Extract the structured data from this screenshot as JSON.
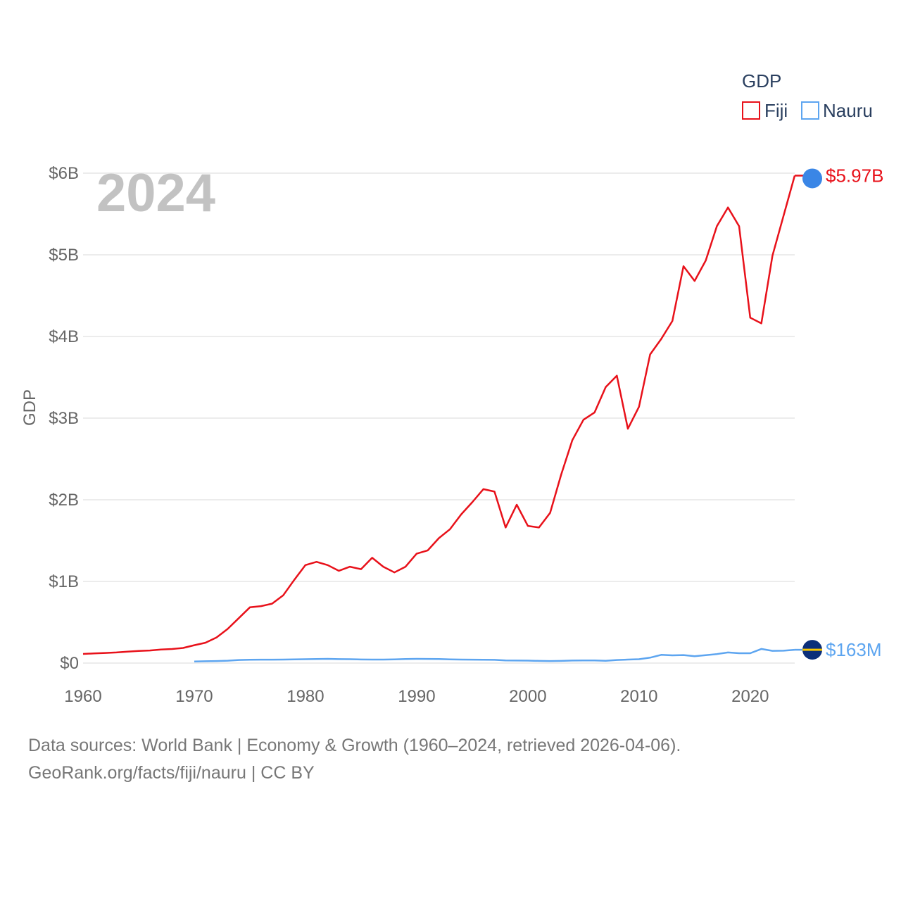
{
  "chart_data": {
    "type": "line",
    "year_label": "2024",
    "ylabel": "GDP",
    "legend_title": "GDP",
    "xlim": [
      1960,
      2024
    ],
    "ylim": [
      0,
      6000000000
    ],
    "x_ticks": [
      1960,
      1970,
      1980,
      1990,
      2000,
      2010,
      2020
    ],
    "y_ticks": [
      {
        "value": 0,
        "label": "$0"
      },
      {
        "value": 1000000000,
        "label": "$1B"
      },
      {
        "value": 2000000000,
        "label": "$2B"
      },
      {
        "value": 3000000000,
        "label": "$3B"
      },
      {
        "value": 4000000000,
        "label": "$4B"
      },
      {
        "value": 5000000000,
        "label": "$5B"
      },
      {
        "value": 6000000000,
        "label": "$6B"
      }
    ],
    "series": [
      {
        "name": "Fiji",
        "color": "#e8111a",
        "end_label": "$5.97B",
        "x": [
          1960,
          1961,
          1962,
          1963,
          1964,
          1965,
          1966,
          1967,
          1968,
          1969,
          1970,
          1971,
          1972,
          1973,
          1974,
          1975,
          1976,
          1977,
          1978,
          1979,
          1980,
          1981,
          1982,
          1983,
          1984,
          1985,
          1986,
          1987,
          1988,
          1989,
          1990,
          1991,
          1992,
          1993,
          1994,
          1995,
          1996,
          1997,
          1998,
          1999,
          2000,
          2001,
          2002,
          2003,
          2004,
          2005,
          2006,
          2007,
          2008,
          2009,
          2010,
          2011,
          2012,
          2013,
          2014,
          2015,
          2016,
          2017,
          2018,
          2019,
          2020,
          2021,
          2022,
          2023,
          2024
        ],
        "values": [
          112000000,
          118000000,
          124000000,
          130000000,
          140000000,
          148000000,
          154000000,
          166000000,
          172000000,
          185000000,
          219000000,
          249000000,
          314000000,
          418000000,
          550000000,
          683000000,
          697000000,
          728000000,
          829000000,
          1020000000,
          1200000000,
          1240000000,
          1200000000,
          1130000000,
          1180000000,
          1150000000,
          1290000000,
          1180000000,
          1110000000,
          1180000000,
          1340000000,
          1380000000,
          1530000000,
          1640000000,
          1820000000,
          1970000000,
          2130000000,
          2100000000,
          1660000000,
          1940000000,
          1680000000,
          1660000000,
          1840000000,
          2310000000,
          2730000000,
          2980000000,
          3070000000,
          3380000000,
          3520000000,
          2870000000,
          3140000000,
          3780000000,
          3970000000,
          4190000000,
          4860000000,
          4680000000,
          4930000000,
          5350000000,
          5580000000,
          5350000000,
          4230000000,
          4160000000,
          4990000000,
          5480000000,
          5970000000
        ]
      },
      {
        "name": "Nauru",
        "color": "#5da5f0",
        "end_label": "$163M",
        "x": [
          1970,
          1971,
          1972,
          1973,
          1974,
          1975,
          1976,
          1977,
          1978,
          1979,
          1980,
          1981,
          1982,
          1983,
          1984,
          1985,
          1986,
          1987,
          1988,
          1989,
          1990,
          1991,
          1992,
          1993,
          1994,
          1995,
          1996,
          1997,
          1998,
          1999,
          2000,
          2001,
          2002,
          2003,
          2004,
          2005,
          2006,
          2007,
          2008,
          2009,
          2010,
          2011,
          2012,
          2013,
          2014,
          2015,
          2016,
          2017,
          2018,
          2019,
          2020,
          2021,
          2022,
          2023,
          2024
        ],
        "values": [
          20000000,
          22000000,
          25000000,
          29000000,
          38000000,
          41000000,
          42000000,
          42000000,
          43000000,
          45000000,
          47000000,
          50000000,
          52000000,
          48000000,
          47000000,
          44000000,
          43000000,
          43000000,
          46000000,
          50000000,
          52000000,
          51000000,
          50000000,
          46000000,
          43000000,
          42000000,
          41000000,
          40000000,
          33000000,
          31000000,
          30000000,
          27000000,
          25000000,
          27000000,
          31000000,
          32000000,
          32000000,
          28000000,
          38000000,
          43000000,
          47000000,
          66000000,
          101000000,
          95000000,
          98000000,
          84000000,
          97000000,
          110000000,
          130000000,
          121000000,
          121000000,
          173000000,
          150000000,
          152000000,
          163000000
        ]
      }
    ]
  },
  "footer": {
    "line1": "Data sources: World Bank | Economy & Growth (1960–2024, retrieved 2026-04-06).",
    "line2": "GeoRank.org/facts/fiji/nauru | CC BY"
  }
}
